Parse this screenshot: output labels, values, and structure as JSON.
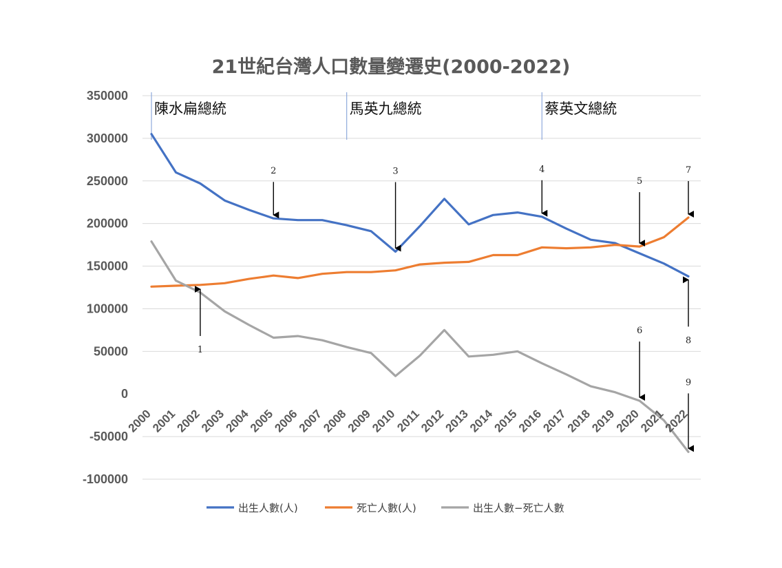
{
  "chart_data": {
    "type": "line",
    "title": "21世紀台灣人口數量變遷史(2000-2022)",
    "categories": [
      "2000",
      "2001",
      "2002",
      "2003",
      "2004",
      "2005",
      "2006",
      "2007",
      "2008",
      "2009",
      "2010",
      "2011",
      "2012",
      "2013",
      "2014",
      "2015",
      "2016",
      "2017",
      "2018",
      "2019",
      "2020",
      "2021",
      "2022"
    ],
    "ylim": [
      -100000,
      350000
    ],
    "yticks": [
      -100000,
      -50000,
      0,
      50000,
      100000,
      150000,
      200000,
      250000,
      300000,
      350000
    ],
    "ytick_labels": [
      "-100000",
      "-50000",
      "0",
      "50000",
      "100000",
      "150000",
      "200000",
      "250000",
      "300000",
      "350000"
    ],
    "grid": true,
    "legend_position": "bottom",
    "series": [
      {
        "name": "出生人數(人)",
        "color": "#4472c4",
        "values": [
          305000,
          260000,
          247000,
          227000,
          216000,
          206000,
          204000,
          204000,
          198000,
          191000,
          167000,
          197000,
          229000,
          199000,
          210000,
          213000,
          208000,
          194000,
          181000,
          177000,
          165000,
          153000,
          138000
        ]
      },
      {
        "name": "死亡人數(人)",
        "color": "#ed7d31",
        "values": [
          126000,
          127000,
          128000,
          130000,
          135000,
          139000,
          136000,
          141000,
          143000,
          143000,
          145000,
          152000,
          154000,
          155000,
          163000,
          163000,
          172000,
          171000,
          172000,
          175000,
          173000,
          184000,
          207000
        ]
      },
      {
        "name": "出生人數−死亡人數",
        "color": "#a5a5a5",
        "values": [
          179000,
          133000,
          119000,
          97000,
          81000,
          66000,
          68000,
          63000,
          55000,
          48000,
          21000,
          45000,
          75000,
          44000,
          46000,
          50000,
          36000,
          23000,
          9000,
          2000,
          -8000,
          -31000,
          -68000
        ]
      }
    ],
    "eras": [
      {
        "label": "陳水扁總統",
        "start": "2000"
      },
      {
        "label": "馬英九總統",
        "start": "2008"
      },
      {
        "label": "蔡英文總統",
        "start": "2016"
      }
    ],
    "annotations": [
      {
        "label": "1",
        "category": "2002",
        "value": 127000,
        "direction": "up"
      },
      {
        "label": "2",
        "category": "2005",
        "value": 206000,
        "direction": "down"
      },
      {
        "label": "3",
        "category": "2010",
        "value": 167000,
        "direction": "down"
      },
      {
        "label": "4",
        "category": "2016",
        "value": 208000,
        "direction": "down"
      },
      {
        "label": "5",
        "category": "2020",
        "value": 173000,
        "direction": "down"
      },
      {
        "label": "6",
        "category": "2020",
        "value": -8000,
        "direction": "down"
      },
      {
        "label": "7",
        "category": "2022",
        "value": 207000,
        "direction": "down"
      },
      {
        "label": "8",
        "category": "2022",
        "value": 138000,
        "direction": "up"
      },
      {
        "label": "9",
        "category": "2022",
        "value": -68000,
        "direction": "down"
      }
    ]
  }
}
